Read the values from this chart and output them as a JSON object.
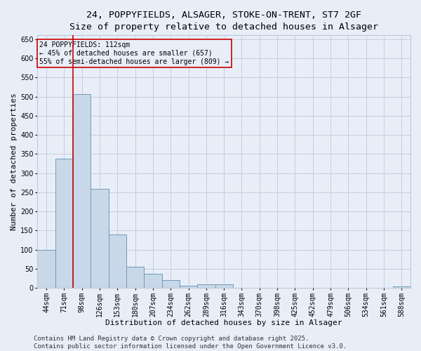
{
  "title_line1": "24, POPPYFIELDS, ALSAGER, STOKE-ON-TRENT, ST7 2GF",
  "title_line2": "Size of property relative to detached houses in Alsager",
  "xlabel": "Distribution of detached houses by size in Alsager",
  "ylabel": "Number of detached properties",
  "categories": [
    "44sqm",
    "71sqm",
    "98sqm",
    "126sqm",
    "153sqm",
    "180sqm",
    "207sqm",
    "234sqm",
    "262sqm",
    "289sqm",
    "316sqm",
    "343sqm",
    "370sqm",
    "398sqm",
    "425sqm",
    "452sqm",
    "479sqm",
    "506sqm",
    "534sqm",
    "561sqm",
    "588sqm"
  ],
  "values": [
    100,
    338,
    507,
    258,
    140,
    55,
    37,
    20,
    5,
    10,
    10,
    0,
    0,
    0,
    0,
    0,
    0,
    0,
    0,
    0,
    3
  ],
  "bar_color": "#c8d8e8",
  "bar_edge_color": "#7099bb",
  "bar_linewidth": 0.7,
  "grid_color": "#c0c8d8",
  "bg_color": "#e8eef8",
  "property_line_index": 2,
  "property_line_color": "#cc0000",
  "annotation_text": "24 POPPYFIELDS: 112sqm\n← 45% of detached houses are smaller (657)\n55% of semi-detached houses are larger (809) →",
  "annotation_box_color": "#cc0000",
  "ylim": [
    0,
    660
  ],
  "yticks": [
    0,
    50,
    100,
    150,
    200,
    250,
    300,
    350,
    400,
    450,
    500,
    550,
    600,
    650
  ],
  "footer_line1": "Contains HM Land Registry data © Crown copyright and database right 2025.",
  "footer_line2": "Contains public sector information licensed under the Open Government Licence v3.0.",
  "title_fontsize": 9.5,
  "axis_label_fontsize": 8,
  "tick_fontsize": 7,
  "annotation_fontsize": 7,
  "footer_fontsize": 6.5
}
